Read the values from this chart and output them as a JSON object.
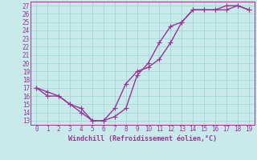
{
  "line1_x": [
    0,
    1,
    2,
    3,
    4,
    5,
    6,
    7,
    8,
    9,
    10,
    11,
    12,
    13,
    14,
    15,
    16,
    17,
    18,
    19
  ],
  "line1_y": [
    17,
    16.5,
    16,
    15,
    14,
    13,
    13,
    14.5,
    17.5,
    19,
    19.5,
    20.5,
    22.5,
    25,
    26.5,
    26.5,
    26.5,
    26.5,
    27,
    26.5
  ],
  "line2_x": [
    0,
    1,
    2,
    3,
    4,
    5,
    6,
    7,
    8,
    9,
    10,
    11,
    12,
    13,
    14,
    15,
    16,
    17,
    18,
    19
  ],
  "line2_y": [
    17,
    16,
    16,
    15,
    14.5,
    13,
    13,
    13.5,
    14.5,
    18.5,
    20,
    22.5,
    24.5,
    25,
    26.5,
    26.5,
    26.5,
    27,
    27,
    26.5
  ],
  "line_color": "#993399",
  "bg_color": "#c8eaea",
  "grid_color": "#a8d8d8",
  "xlabel": "Windchill (Refroidissement éolien,°C)",
  "xlabel_color": "#993399",
  "xlim": [
    -0.5,
    19.5
  ],
  "ylim": [
    12.5,
    27.5
  ],
  "yticks": [
    13,
    14,
    15,
    16,
    17,
    18,
    19,
    20,
    21,
    22,
    23,
    24,
    25,
    26,
    27
  ],
  "xticks": [
    0,
    1,
    2,
    3,
    4,
    5,
    6,
    7,
    8,
    9,
    10,
    11,
    12,
    13,
    14,
    15,
    16,
    17,
    18,
    19
  ],
  "tick_color": "#993399",
  "spine_color": "#993399",
  "marker": "+",
  "marker_size": 4,
  "line_width": 1.0,
  "tick_fontsize": 5.5,
  "xlabel_fontsize": 6.0
}
